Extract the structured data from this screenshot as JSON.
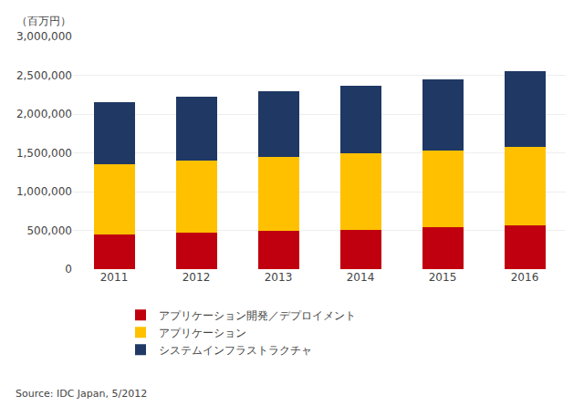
{
  "chart_data": {
    "type": "bar",
    "stacked": true,
    "categories": [
      "2011",
      "2012",
      "2013",
      "2014",
      "2015",
      "2016"
    ],
    "series": [
      {
        "name": "アプリケーション開発／デプロイメント",
        "color": "#c0000f",
        "values": [
          450000,
          470000,
          490000,
          510000,
          540000,
          565000
        ]
      },
      {
        "name": "アプリケーション",
        "color": "#ffc000",
        "values": [
          900000,
          930000,
          960000,
          980000,
          990000,
          1010000
        ]
      },
      {
        "name": "システムインフラストラクチャ",
        "color": "#1f3864",
        "values": [
          800000,
          820000,
          850000,
          870000,
          920000,
          975000
        ]
      }
    ],
    "ylabel": "（百万円）",
    "ylim": [
      0,
      3000000
    ],
    "yticks": [
      0,
      {
        "value": 500000,
        "label": "500,000"
      },
      {
        "value": 1000000,
        "label": "1,000,000"
      },
      {
        "value": 1500000,
        "label": "1,500,000"
      },
      {
        "value": 2000000,
        "label": "2,000,000"
      },
      {
        "value": 2500000,
        "label": "2,500,000"
      },
      {
        "value": 3000000,
        "label": "3,000,000"
      }
    ],
    "grid": true,
    "legend": "bottom",
    "annotations": [
      "Source: IDC Japan, 5/2012"
    ]
  }
}
